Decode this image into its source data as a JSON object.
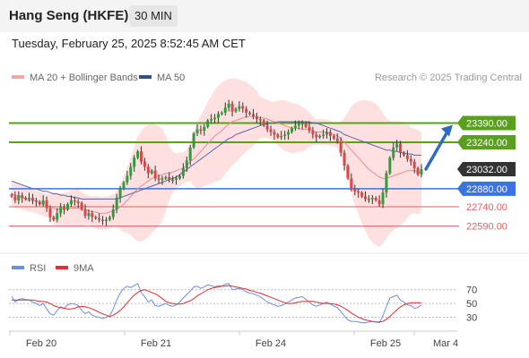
{
  "header": {
    "title": "Hang Seng (HKFE)",
    "interval": "30 MIN"
  },
  "timestamp": "Tuesday, February 25, 2025 8:52:45 AM CET",
  "legend": {
    "ma20_label": "MA 20 + Bollinger Bands",
    "ma50_label": "MA 50",
    "credit": "Research © 2025 Trading Central"
  },
  "rsi_legend": {
    "rsi_label": "RSI",
    "ma_label": "9MA"
  },
  "colors": {
    "resistance": "#5aa01e",
    "support": "#3a73e6",
    "pivot": "#333333",
    "minor_support": "#e36060",
    "bullish_candle": "#2e9e3a",
    "bearish_candle": "#e04545",
    "bollinger": "#ffd6d6",
    "ma20": "#f08b8b",
    "ma50": "#5b64a8",
    "rsi": "#6a8fe8",
    "rsi_ma": "#e03030",
    "arrow": "#2f6bc4"
  },
  "chart_data": {
    "type": "candlestick",
    "x_labels": [
      "Feb 20",
      "Feb 21",
      "Feb 24",
      "Feb 25",
      "Mar 4"
    ],
    "price_axis": {
      "min": 22400,
      "max": 23650
    },
    "levels": [
      {
        "label": "23390.00",
        "value": 23390,
        "kind": "resistance"
      },
      {
        "label": "23240.00",
        "value": 23240,
        "kind": "resistance"
      },
      {
        "label": "23032.00",
        "value": 23032,
        "kind": "pivot"
      },
      {
        "label": "22880.00",
        "value": 22880,
        "kind": "support"
      },
      {
        "label": "22740.00",
        "value": 22740,
        "kind": "minor_support"
      },
      {
        "label": "22590.00",
        "value": 22590,
        "kind": "minor_support"
      }
    ],
    "forecast_arrow": {
      "from": 23032,
      "to": 23390
    },
    "closes": [
      22820,
      22790,
      22830,
      22810,
      22800,
      22810,
      22790,
      22780,
      22760,
      22790,
      22730,
      22660,
      22640,
      22690,
      22740,
      22720,
      22760,
      22790,
      22780,
      22770,
      22720,
      22670,
      22690,
      22660,
      22650,
      22640,
      22630,
      22640,
      22660,
      22720,
      22810,
      22880,
      22930,
      22980,
      23050,
      23120,
      23170,
      23090,
      23050,
      23000,
      23020,
      22960,
      22950,
      22960,
      22970,
      22950,
      22950,
      22960,
      22980,
      23040,
      23100,
      23200,
      23310,
      23340,
      23330,
      23360,
      23410,
      23420,
      23430,
      23460,
      23470,
      23510,
      23540,
      23480,
      23500,
      23520,
      23500,
      23470,
      23460,
      23440,
      23420,
      23410,
      23370,
      23340,
      23320,
      23300,
      23280,
      23290,
      23300,
      23320,
      23350,
      23370,
      23380,
      23390,
      23360,
      23330,
      23300,
      23280,
      23290,
      23300,
      23320,
      23290,
      23270,
      23250,
      23160,
      23060,
      22960,
      22880,
      22860,
      22850,
      22820,
      22800,
      22800,
      22810,
      22790,
      22760,
      22850,
      23000,
      23120,
      23200,
      23230,
      23160,
      23140,
      23110,
      23090,
      23040,
      22990,
      23032
    ],
    "ma20": [
      22840,
      22830,
      22820,
      22810,
      22800,
      22790,
      22790,
      22780,
      22770,
      22760,
      22750,
      22740,
      22730,
      22720,
      22720,
      22720,
      22720,
      22730,
      22730,
      22730,
      22720,
      22720,
      22710,
      22700,
      22700,
      22690,
      22690,
      22690,
      22700,
      22710,
      22720,
      22740,
      22760,
      22790,
      22820,
      22850,
      22880,
      22900,
      22920,
      22940,
      22960,
      22970,
      22980,
      22990,
      23000,
      23000,
      23010,
      23020,
      23030,
      23040,
      23060,
      23090,
      23110,
      23140,
      23170,
      23200,
      23230,
      23260,
      23290,
      23310,
      23330,
      23360,
      23380,
      23400,
      23410,
      23420,
      23430,
      23440,
      23440,
      23440,
      23440,
      23430,
      23430,
      23420,
      23410,
      23400,
      23390,
      23380,
      23370,
      23360,
      23350,
      23350,
      23350,
      23340,
      23340,
      23340,
      23330,
      23320,
      23320,
      23320,
      23320,
      23310,
      23300,
      23290,
      23270,
      23240,
      23210,
      23180,
      23150,
      23120,
      23090,
      23060,
      23030,
      23010,
      22990,
      22970,
      22960,
      22960,
      22970,
      22980,
      22990,
      23000,
      23010,
      23020,
      23020,
      23020,
      23010,
      23010
    ],
    "ma50": [
      22940,
      22930,
      22920,
      22910,
      22900,
      22890,
      22880,
      22880,
      22870,
      22860,
      22860,
      22850,
      22840,
      22840,
      22830,
      22830,
      22820,
      22820,
      22810,
      22810,
      22800,
      22800,
      22800,
      22800,
      22800,
      22800,
      22800,
      22800,
      22800,
      22800,
      22800,
      22810,
      22820,
      22830,
      22840,
      22850,
      22860,
      22870,
      22880,
      22890,
      22900,
      22910,
      22920,
      22930,
      22940,
      22950,
      22960,
      22970,
      22990,
      23010,
      23030,
      23050,
      23070,
      23090,
      23110,
      23130,
      23150,
      23170,
      23190,
      23210,
      23230,
      23250,
      23270,
      23280,
      23300,
      23310,
      23320,
      23330,
      23340,
      23350,
      23360,
      23370,
      23380,
      23380,
      23390,
      23390,
      23400,
      23400,
      23400,
      23400,
      23400,
      23400,
      23400,
      23400,
      23400,
      23400,
      23390,
      23390,
      23380,
      23370,
      23360,
      23350,
      23340,
      23330,
      23320,
      23300,
      23290,
      23280,
      23270,
      23260,
      23250,
      23240,
      23230,
      23220,
      23210,
      23200,
      23190,
      23180,
      23180,
      23170,
      23170,
      23160,
      23160,
      23150,
      23150,
      23140,
      23140,
      23140
    ],
    "rsi_axis": {
      "min": 15,
      "max": 80,
      "ticks": [
        "70",
        "50",
        "30"
      ]
    },
    "rsi": [
      60,
      52,
      56,
      57,
      56,
      55,
      52,
      50,
      47,
      50,
      42,
      35,
      33,
      40,
      45,
      43,
      48,
      50,
      49,
      47,
      40,
      35,
      38,
      33,
      31,
      30,
      28,
      30,
      32,
      42,
      55,
      65,
      72,
      75,
      73,
      76,
      79,
      66,
      60,
      52,
      55,
      47,
      46,
      48,
      50,
      47,
      46,
      48,
      52,
      58,
      63,
      68,
      74,
      75,
      72,
      74,
      77,
      76,
      74,
      76,
      75,
      78,
      79,
      70,
      71,
      72,
      70,
      67,
      65,
      64,
      62,
      60,
      56,
      52,
      50,
      48,
      46,
      47,
      49,
      52,
      55,
      58,
      59,
      60,
      56,
      52,
      48,
      46,
      48,
      50,
      52,
      49,
      46,
      44,
      38,
      32,
      26,
      24,
      24,
      23,
      22,
      22,
      23,
      24,
      23,
      22,
      32,
      45,
      58,
      60,
      62,
      55,
      52,
      48,
      47,
      43,
      44,
      48
    ],
    "rsi_ma": [
      55,
      55,
      55,
      55,
      55,
      55,
      55,
      54,
      53,
      53,
      52,
      50,
      47,
      45,
      44,
      43,
      42,
      42,
      43,
      45,
      46,
      45,
      44,
      42,
      40,
      37,
      35,
      33,
      31,
      33,
      36,
      40,
      45,
      51,
      57,
      62,
      66,
      69,
      70,
      68,
      66,
      64,
      61,
      57,
      53,
      51,
      50,
      49,
      49,
      50,
      52,
      54,
      57,
      61,
      64,
      67,
      70,
      72,
      73,
      74,
      75,
      75,
      76,
      75,
      74,
      73,
      72,
      71,
      69,
      68,
      66,
      65,
      63,
      61,
      59,
      57,
      55,
      53,
      51,
      50,
      50,
      51,
      52,
      53,
      53,
      53,
      53,
      52,
      51,
      50,
      50,
      50,
      49,
      48,
      46,
      43,
      40,
      36,
      33,
      30,
      28,
      26,
      25,
      24,
      23,
      23,
      24,
      27,
      31,
      36,
      41,
      45,
      48,
      50,
      51,
      51,
      51,
      51
    ]
  }
}
